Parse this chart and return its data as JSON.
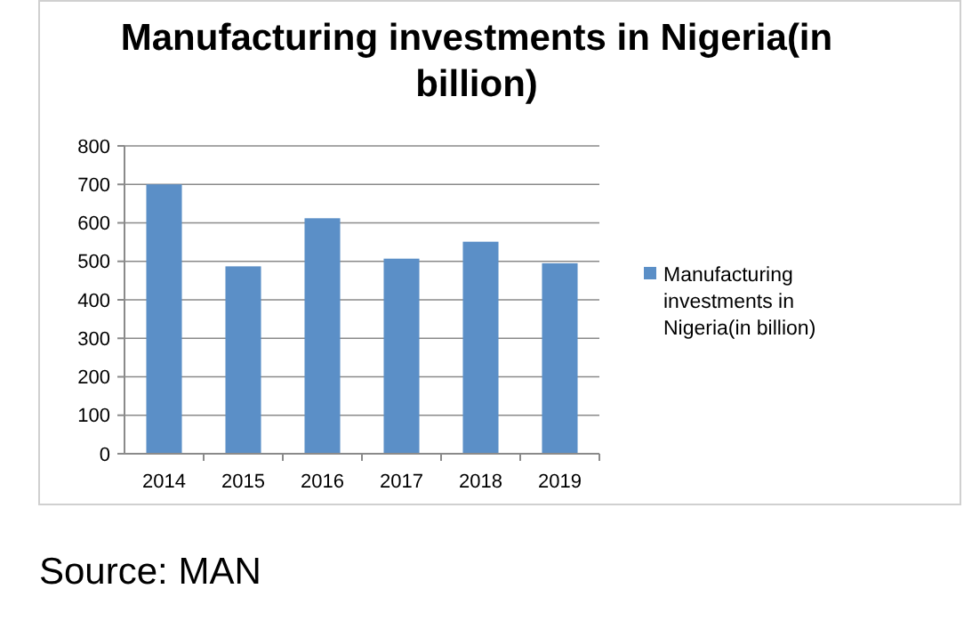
{
  "chart_data": {
    "type": "bar",
    "title": "Manufacturing investments in Nigeria(in billion)",
    "categories": [
      "2014",
      "2015",
      "2016",
      "2017",
      "2018",
      "2019"
    ],
    "series": [
      {
        "name": "Manufacturing investments in Nigeria(in billion)",
        "color": "#5b8fc7",
        "values": [
          700,
          487,
          612,
          507,
          551,
          495
        ]
      }
    ],
    "ylim": [
      0,
      800
    ],
    "yticks": [
      0,
      100,
      200,
      300,
      400,
      500,
      600,
      700,
      800
    ],
    "grid": "y",
    "legend": "right",
    "annotations": [
      "Source: MAN"
    ]
  }
}
